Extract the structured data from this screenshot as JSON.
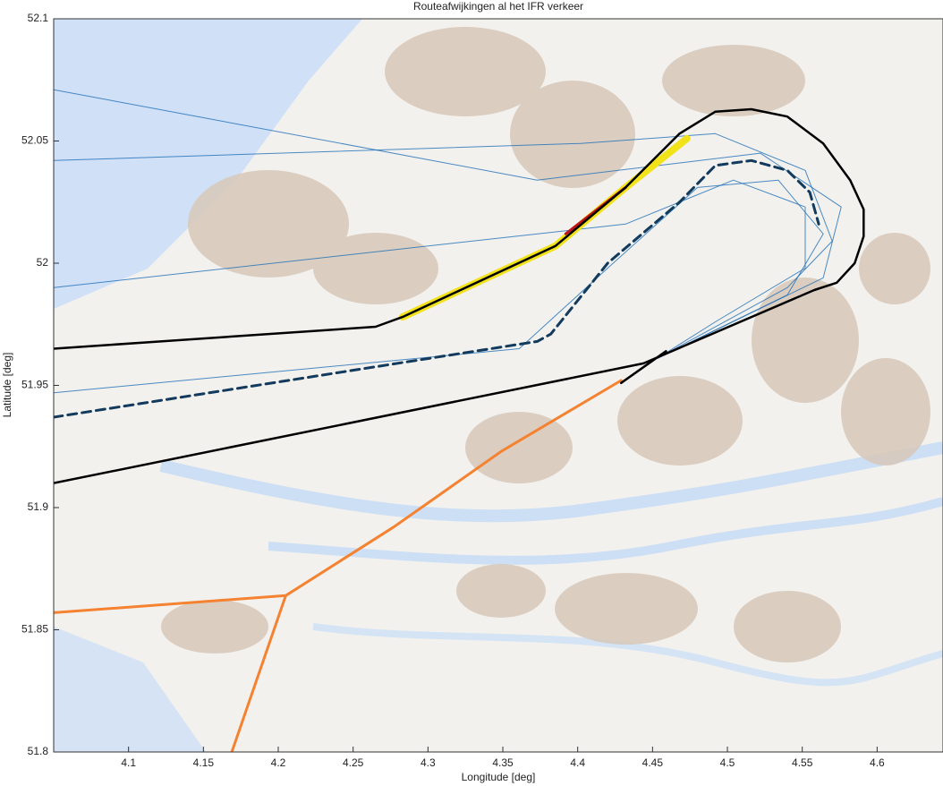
{
  "chart_data": {
    "type": "line",
    "title": "Routeafwijkingen al het IFR verkeer",
    "x_label": "Longitude [deg]",
    "y_label": "Latitude [deg]",
    "xlim": [
      4.05,
      4.644
    ],
    "ylim": [
      51.8,
      52.1
    ],
    "xticks": [
      4.1,
      4.15,
      4.2,
      4.25,
      4.3,
      4.35,
      4.4,
      4.45,
      4.5,
      4.55,
      4.6
    ],
    "yticks": [
      51.8,
      51.85,
      51.9,
      51.95,
      52,
      52.05,
      52.1
    ],
    "series": [
      {
        "color": "#1f6fb8",
        "linewidth": 1,
        "linestyle": "solid",
        "x": [
          4.05,
          4.432,
          4.504,
          4.552,
          4.552,
          4.492,
          4.453
        ],
        "values": [
          51.99,
          52.016,
          52.034,
          52.023,
          51.998,
          51.976,
          51.961
        ]
      },
      {
        "color": "#1f6fb8",
        "linewidth": 1,
        "linestyle": "solid",
        "x": [
          4.05,
          4.402,
          4.492,
          4.552,
          4.57,
          4.54,
          4.453
        ],
        "values": [
          52.042,
          52.049,
          52.053,
          52.038,
          52.009,
          51.99,
          51.961
        ]
      },
      {
        "color": "#1f6fb8",
        "linewidth": 1,
        "linestyle": "solid",
        "x": [
          4.05,
          4.361,
          4.42,
          4.48,
          4.534,
          4.564,
          4.54,
          4.453
        ],
        "values": [
          51.947,
          51.965,
          51.998,
          52.031,
          52.034,
          52.012,
          51.987,
          51.961
        ]
      },
      {
        "color": "#1f6fb8",
        "linewidth": 1,
        "linestyle": "solid",
        "x": [
          4.05,
          4.373,
          4.522,
          4.576,
          4.564,
          4.453
        ],
        "values": [
          52.071,
          52.034,
          52.045,
          52.023,
          51.994,
          51.961
        ]
      },
      {
        "color": "#f58231",
        "linewidth": 3,
        "linestyle": "solid",
        "x": [
          4.05,
          4.205,
          4.277,
          4.349,
          4.429
        ],
        "values": [
          51.857,
          51.864,
          51.892,
          51.923,
          51.952
        ]
      },
      {
        "color": "#f58231",
        "linewidth": 3,
        "linestyle": "solid",
        "x": [
          4.205,
          4.169
        ],
        "values": [
          51.864,
          51.8
        ]
      },
      {
        "color": "#f2e21a",
        "linewidth": 8,
        "linestyle": "solid",
        "x": [
          4.283,
          4.385,
          4.432,
          4.473
        ],
        "values": [
          51.978,
          52.007,
          52.031,
          52.051
        ]
      },
      {
        "color": "#c0121b",
        "linewidth": 3,
        "linestyle": "solid",
        "x": [
          4.392,
          4.432
        ],
        "values": [
          52.012,
          52.031
        ]
      },
      {
        "color": "#000000",
        "linewidth": 2.5,
        "linestyle": "solid",
        "x": [
          4.05,
          4.265,
          4.283,
          4.385,
          4.432,
          4.468,
          4.492,
          4.516,
          4.54,
          4.564,
          4.582,
          4.591,
          4.591,
          4.585,
          4.573,
          4.558,
          4.444,
          4.05
        ],
        "values": [
          51.965,
          51.974,
          51.978,
          52.007,
          52.031,
          52.053,
          52.062,
          52.063,
          52.06,
          52.049,
          52.034,
          52.022,
          52.011,
          52.0,
          51.992,
          51.989,
          51.959,
          51.91
        ]
      },
      {
        "color": "#000000",
        "linewidth": 2.5,
        "linestyle": "solid",
        "x": [
          4.429,
          4.459
        ],
        "values": [
          51.951,
          51.964
        ]
      },
      {
        "color": "#123a5c",
        "linewidth": 3,
        "linestyle": "dashed",
        "x": [
          4.05,
          4.373,
          4.382,
          4.42,
          4.468,
          4.492,
          4.516,
          4.54,
          4.555,
          4.561
        ],
        "values": [
          51.937,
          51.968,
          51.971,
          52.0,
          52.025,
          52.04,
          52.042,
          52.038,
          52.029,
          52.016
        ]
      }
    ]
  }
}
